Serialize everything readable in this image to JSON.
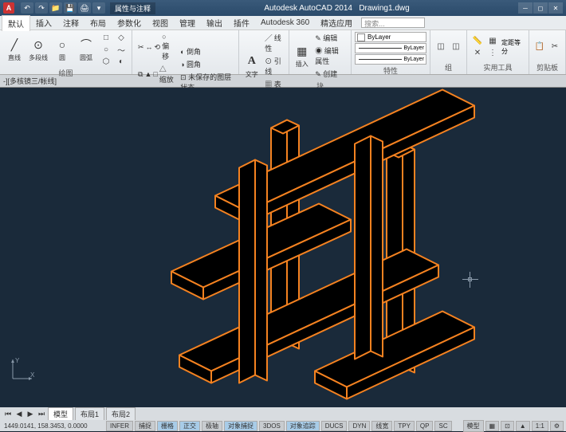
{
  "app": {
    "title": "Autodesk AutoCAD 2014",
    "document": "Drawing1.dwg",
    "logo_letter": "A"
  },
  "qat": [
    "↶",
    "↷",
    "📁",
    "💾",
    "🖨",
    "▾"
  ],
  "menu": {
    "tabs": [
      "默认",
      "插入",
      "注释",
      "布局",
      "参数化",
      "视图",
      "管理",
      "输出",
      "插件",
      "Autodesk 360",
      "精选应用"
    ],
    "active_index": 0,
    "extra_tab": "属性与注释",
    "search_placeholder": "搜索..."
  },
  "ribbon": {
    "panels": [
      {
        "title": "绘图",
        "big": [
          {
            "icon": "╱",
            "label": "直线"
          },
          {
            "icon": "⊙",
            "label": "多段线"
          },
          {
            "icon": "○",
            "label": "圆"
          },
          {
            "icon": "⌒",
            "label": "圆弧"
          }
        ],
        "small": [
          "□",
          "◇",
          "○",
          "～",
          "⬡",
          "◐"
        ]
      },
      {
        "title": "修改",
        "small_rows": [
          [
            "✂",
            "↔",
            "⟲",
            "○ 偏移"
          ],
          [
            "⧉",
            "▲",
            "□",
            "△ 缩放"
          ],
          [
            "✕",
            "→",
            "↕",
            "◫ 阵列"
          ]
        ],
        "extra": [
          "◐ 倒角",
          "◑ 圆角",
          "⊡ 未保存的图层状态"
        ]
      },
      {
        "title": "图层",
        "items": [
          "◉ ● ※",
          "图层"
        ]
      },
      {
        "title": "注释",
        "big": [
          {
            "icon": "A",
            "label": "文字"
          }
        ],
        "rows": [
          "╱ 线性",
          "⊙ 引线",
          "▦ 表格"
        ]
      },
      {
        "title": "块",
        "big": [
          {
            "icon": "▦",
            "label": "插入"
          }
        ],
        "rows": [
          "✎ 编辑",
          "◉ 编辑属性",
          "✎ 创建"
        ]
      },
      {
        "title": "特性",
        "selects": [
          "ByLayer",
          "———— ByLayer",
          "——— ByLayer"
        ]
      },
      {
        "title": "组",
        "small": [
          "◫",
          "◫"
        ]
      },
      {
        "title": "实用工具",
        "small": [
          "📏",
          "▦",
          "✕",
          "定距等分"
        ]
      },
      {
        "title": "剪贴板",
        "small": [
          "📋",
          "✂"
        ]
      }
    ]
  },
  "filetab": {
    "label": "-][多核镜三/帐线]"
  },
  "drawing": {
    "type": "isometric_3d",
    "background_color": "#1a2a3a",
    "stroke_color": "#f58220",
    "fill_color": "#000000",
    "stroke_width": 2,
    "description": "Hash/grid shaped 3D isometric shelf structure with orange edges and black faces"
  },
  "ucs": {
    "x": "X",
    "y": "Y"
  },
  "layout": {
    "nav": [
      "⏮",
      "◀",
      "▶",
      "⏭"
    ],
    "tabs": [
      "模型",
      "布局1",
      "布局2"
    ]
  },
  "status": {
    "coords": "1449.0141, 158.3453, 0.0000",
    "buttons": [
      {
        "label": "INFER",
        "on": false
      },
      {
        "label": "捕捉",
        "on": false
      },
      {
        "label": "栅格",
        "on": true
      },
      {
        "label": "正交",
        "on": true
      },
      {
        "label": "极轴",
        "on": false
      },
      {
        "label": "对象捕捉",
        "on": true
      },
      {
        "label": "3DOS",
        "on": false
      },
      {
        "label": "对象追踪",
        "on": true
      },
      {
        "label": "DUCS",
        "on": false
      },
      {
        "label": "DYN",
        "on": false
      },
      {
        "label": "线宽",
        "on": false
      },
      {
        "label": "TPY",
        "on": false
      },
      {
        "label": "QP",
        "on": false
      },
      {
        "label": "SC",
        "on": false
      }
    ],
    "right": [
      "模型",
      "▦",
      "⊡",
      "▲",
      "1:1",
      "⚙"
    ]
  },
  "colors": {
    "titlebar_bg": "#3a5a7a",
    "ribbon_bg": "#f0f3f6",
    "canvas_bg": "#1a2a3a",
    "orange": "#f58220"
  }
}
